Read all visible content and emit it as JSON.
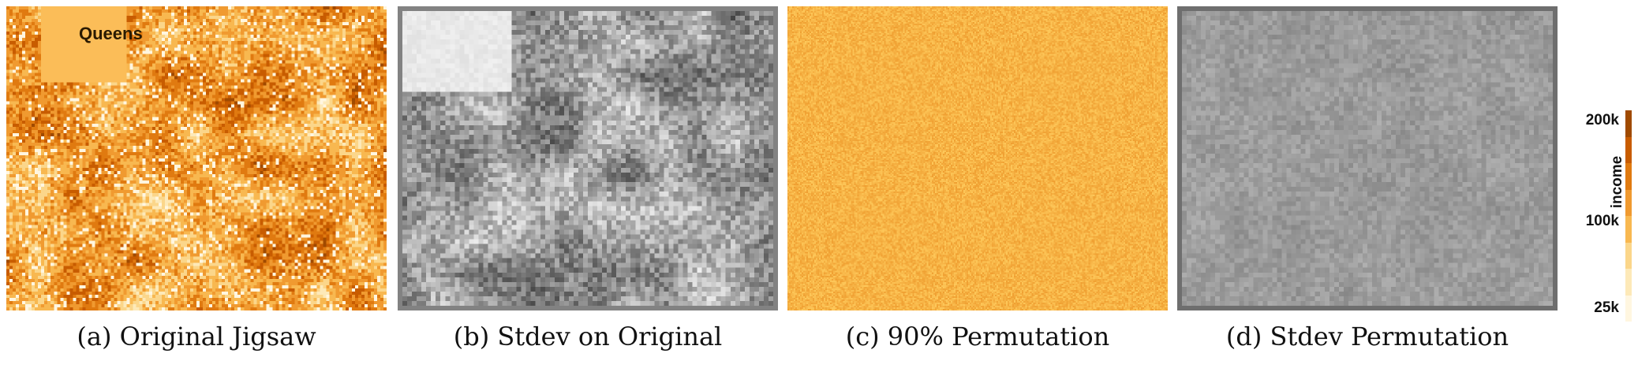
{
  "panels": [
    {
      "id": "a",
      "caption": "(a) Original Jigsaw",
      "overlay_label": "Queens",
      "palette": "orange"
    },
    {
      "id": "b",
      "caption": "(b) Stdev on Original",
      "palette": "gray"
    },
    {
      "id": "c",
      "caption": "(c) 90% Permutation",
      "palette": "orange-uniform"
    },
    {
      "id": "d",
      "caption": "(d) Stdev Permutation",
      "palette": "gray-uniform"
    }
  ],
  "legend": {
    "title": "income",
    "ticks": [
      "200k",
      "100k",
      "25k"
    ],
    "colors": [
      "#a04a00",
      "#c85c00",
      "#e07a10",
      "#f09a30",
      "#f8b850",
      "#fbd68a",
      "#fde9b8",
      "#fff6e0"
    ]
  }
}
